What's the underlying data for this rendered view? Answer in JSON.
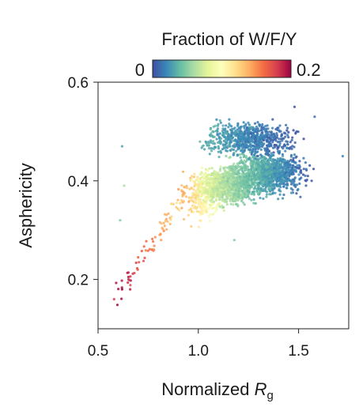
{
  "chart_data": {
    "type": "scatter",
    "title": "",
    "xlabel_main": "Normalized ",
    "xlabel_italic": "R",
    "xlabel_sub": "g",
    "ylabel": "Asphericity",
    "xlim": [
      0.5,
      1.75
    ],
    "ylim": [
      0.1,
      0.6
    ],
    "x_ticks": [
      0.5,
      1.0,
      1.5
    ],
    "x_tick_labels": [
      "0.5",
      "1.0",
      "1.5"
    ],
    "y_ticks": [
      0.2,
      0.4,
      0.6
    ],
    "y_tick_labels": [
      "0.2",
      "0.4",
      "0.6"
    ],
    "grid": false,
    "colorbar": {
      "title": "Fraction of W/F/Y",
      "min_label": "0",
      "max_label": "0.2",
      "range": [
        0,
        0.2
      ],
      "colormap": "Spectral_r",
      "stops": [
        "#3f4fa0",
        "#3a88b8",
        "#67bda4",
        "#abdda4",
        "#e6f598",
        "#fefebd",
        "#fee08b",
        "#fdae61",
        "#f46d43",
        "#d53e4f",
        "#9e0142"
      ]
    },
    "point_clusters": [
      {
        "x_range": [
          0.58,
          0.92
        ],
        "y_range": [
          0.16,
          0.36
        ],
        "trend": "diagonal",
        "count": 70,
        "c_range": [
          0.12,
          0.2
        ]
      },
      {
        "x_range": [
          0.88,
          1.15
        ],
        "y_range": [
          0.3,
          0.44
        ],
        "count": 260,
        "c_range": [
          0.07,
          0.15
        ]
      },
      {
        "x_range": [
          0.95,
          1.35
        ],
        "y_range": [
          0.34,
          0.44
        ],
        "count": 900,
        "c_range": [
          0.03,
          0.09
        ]
      },
      {
        "x_range": [
          1.1,
          1.6
        ],
        "y_range": [
          0.36,
          0.47
        ],
        "count": 1100,
        "c_range": [
          0.0,
          0.06
        ]
      },
      {
        "x_range": [
          0.95,
          1.55
        ],
        "y_range": [
          0.44,
          0.53
        ],
        "count": 700,
        "c_range": [
          0.0,
          0.04
        ]
      }
    ],
    "outliers": [
      {
        "x": 0.62,
        "y": 0.47,
        "c": 0.03
      },
      {
        "x": 0.63,
        "y": 0.39,
        "c": 0.06
      },
      {
        "x": 0.61,
        "y": 0.32,
        "c": 0.05
      },
      {
        "x": 1.48,
        "y": 0.55,
        "c": 0.0
      },
      {
        "x": 1.58,
        "y": 0.53,
        "c": 0.01
      },
      {
        "x": 1.72,
        "y": 0.45,
        "c": 0.02
      },
      {
        "x": 1.18,
        "y": 0.28,
        "c": 0.05
      },
      {
        "x": 0.58,
        "y": 0.16,
        "c": 0.18
      },
      {
        "x": 0.62,
        "y": 0.18,
        "c": 0.2
      },
      {
        "x": 0.66,
        "y": 0.18,
        "c": 0.19
      }
    ]
  }
}
